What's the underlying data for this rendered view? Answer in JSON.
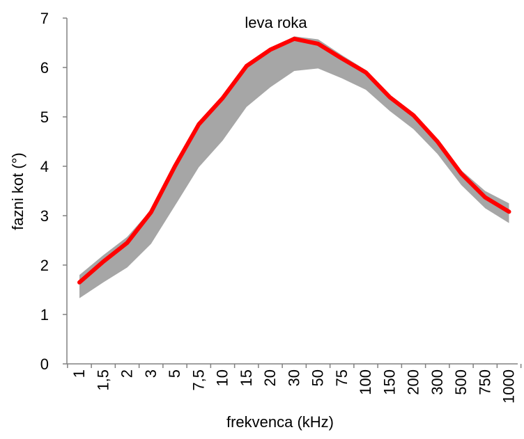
{
  "chart_data": {
    "type": "line",
    "title": "leva roka",
    "xlabel": "frekvenca (kHz)",
    "ylabel": "fazni kot (°)",
    "categories": [
      "1",
      "1,5",
      "2",
      "3",
      "5",
      "7,5",
      "10",
      "15",
      "20",
      "30",
      "50",
      "75",
      "100",
      "150",
      "200",
      "300",
      "500",
      "750",
      "1000"
    ],
    "yticks": [
      "0",
      "1",
      "2",
      "3",
      "4",
      "5",
      "6",
      "7"
    ],
    "ylim": [
      0,
      7
    ],
    "grid": false,
    "legend": "none",
    "series": [
      {
        "role": "mean",
        "values": [
          1.65,
          2.07,
          2.45,
          3.07,
          4.0,
          4.85,
          5.38,
          6.03,
          6.36,
          6.58,
          6.48,
          6.18,
          5.9,
          5.4,
          5.03,
          4.5,
          3.85,
          3.37,
          3.08
        ]
      },
      {
        "role": "band-upper",
        "values": [
          1.8,
          2.2,
          2.57,
          3.12,
          4.03,
          4.87,
          5.4,
          6.05,
          6.38,
          6.63,
          6.57,
          6.25,
          5.95,
          5.45,
          5.08,
          4.55,
          3.92,
          3.5,
          3.25
        ]
      },
      {
        "role": "band-lower",
        "values": [
          1.33,
          1.65,
          1.95,
          2.43,
          3.2,
          3.98,
          4.52,
          5.2,
          5.6,
          5.93,
          5.98,
          5.78,
          5.55,
          5.12,
          4.75,
          4.25,
          3.62,
          3.15,
          2.85
        ]
      }
    ],
    "colors": {
      "mean": "#ff0000",
      "band": "#a6a6a6",
      "axis": "#808080"
    }
  }
}
